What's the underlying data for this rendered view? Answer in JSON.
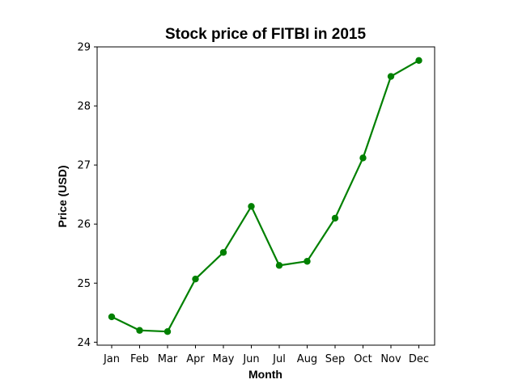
{
  "chart_data": {
    "type": "line",
    "title": "Stock price of FITBI in 2015",
    "xlabel": "Month",
    "ylabel": "Price (USD)",
    "categories": [
      "Jan",
      "Feb",
      "Mar",
      "Apr",
      "May",
      "Jun",
      "Jul",
      "Aug",
      "Sep",
      "Oct",
      "Nov",
      "Dec"
    ],
    "series": [
      {
        "values": [
          24.43,
          24.2,
          24.18,
          25.07,
          25.52,
          26.3,
          25.3,
          25.37,
          26.1,
          27.12,
          28.5,
          28.77
        ],
        "color": "#008000",
        "marker": "circle"
      }
    ],
    "ylim": [
      23.95,
      29.0
    ],
    "yticks": [
      24,
      25,
      26,
      27,
      28,
      29
    ],
    "grid": false,
    "legend": false
  }
}
